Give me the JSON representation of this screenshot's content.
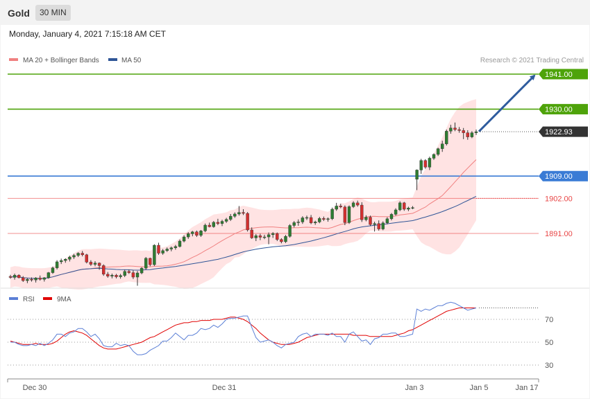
{
  "header": {
    "title": "Gold",
    "interval": "30 MIN"
  },
  "timestamp": "Monday, January 4, 2021 7:15:18 AM CET",
  "legend": {
    "ma_bollinger": {
      "label": "MA 20 + Bollinger Bands",
      "color": "#f08080"
    },
    "ma50": {
      "label": "MA 50",
      "color": "#2f5597"
    },
    "credit": "Research © 2021 Trading Central"
  },
  "levels": [
    {
      "value": 1941.0,
      "label": "1941.00",
      "color": "#4ea30a",
      "style": "line",
      "badge": "filled"
    },
    {
      "value": 1930.0,
      "label": "1930.00",
      "color": "#4ea30a",
      "style": "line",
      "badge": "filled"
    },
    {
      "value": 1922.93,
      "label": "1922.93",
      "color": "#333333",
      "style": "dotted",
      "badge": "filled"
    },
    {
      "value": 1909.0,
      "label": "1909.00",
      "color": "#3a7bd5",
      "style": "line",
      "badge": "filled"
    },
    {
      "value": 1902.0,
      "label": "1902.00",
      "color": "#e84545",
      "style": "line",
      "badge": "text"
    },
    {
      "value": 1891.0,
      "label": "1891.00",
      "color": "#e84545",
      "style": "line",
      "badge": "text"
    }
  ],
  "rsi_legend": {
    "rsi": {
      "label": "RSI",
      "color": "#5b7fd6"
    },
    "ma9": {
      "label": "9MA",
      "color": "#e00000"
    }
  },
  "rsi_levels": [
    "70",
    "50",
    "30"
  ],
  "x_labels": [
    "Dec 30",
    "Dec 31",
    "Jan 3",
    "Jan 5",
    "Jan 17"
  ],
  "chart_data": {
    "type": "candlestick",
    "y_range": [
      1873,
      1944
    ],
    "last_price": 1922.93,
    "projection": {
      "from_price": 1923.0,
      "to_price": 1941.0
    },
    "candles": [
      [
        1877.5,
        1878.0,
        1876.8,
        1877.2
      ],
      [
        1877.2,
        1878.4,
        1876.5,
        1877.9
      ],
      [
        1877.9,
        1878.2,
        1876.9,
        1877.1
      ],
      [
        1877.1,
        1877.6,
        1875.8,
        1876.2
      ],
      [
        1876.2,
        1876.9,
        1875.4,
        1876.6
      ],
      [
        1876.6,
        1877.2,
        1875.9,
        1876.4
      ],
      [
        1876.4,
        1877.3,
        1875.6,
        1877.0
      ],
      [
        1877.0,
        1877.8,
        1876.2,
        1876.6
      ],
      [
        1876.6,
        1877.3,
        1875.9,
        1877.1
      ],
      [
        1877.1,
        1878.9,
        1876.8,
        1878.7
      ],
      [
        1878.7,
        1880.6,
        1878.3,
        1880.2
      ],
      [
        1880.2,
        1882.6,
        1879.7,
        1882.1
      ],
      [
        1882.1,
        1883.1,
        1881.4,
        1882.5
      ],
      [
        1882.5,
        1883.2,
        1881.8,
        1882.9
      ],
      [
        1882.9,
        1884.0,
        1882.2,
        1883.6
      ],
      [
        1883.6,
        1884.6,
        1883.0,
        1884.1
      ],
      [
        1884.1,
        1885.1,
        1883.6,
        1884.8
      ],
      [
        1884.8,
        1885.5,
        1883.8,
        1884.3
      ],
      [
        1884.3,
        1884.6,
        1881.6,
        1882.0
      ],
      [
        1882.0,
        1882.6,
        1880.8,
        1881.3
      ],
      [
        1881.3,
        1882.3,
        1880.7,
        1881.7
      ],
      [
        1881.7,
        1881.9,
        1879.6,
        1880.9
      ],
      [
        1880.9,
        1881.3,
        1877.7,
        1878.2
      ],
      [
        1878.2,
        1878.9,
        1877.1,
        1877.6
      ],
      [
        1877.6,
        1878.4,
        1876.9,
        1877.9
      ],
      [
        1877.9,
        1878.3,
        1876.9,
        1877.4
      ],
      [
        1877.4,
        1878.3,
        1876.8,
        1877.8
      ],
      [
        1877.8,
        1879.6,
        1877.3,
        1879.1
      ],
      [
        1879.1,
        1879.7,
        1878.3,
        1878.7
      ],
      [
        1878.7,
        1879.4,
        1876.7,
        1877.3
      ],
      [
        1877.3,
        1879.2,
        1874.6,
        1878.6
      ],
      [
        1878.6,
        1880.4,
        1878.2,
        1880.1
      ],
      [
        1880.1,
        1883.6,
        1879.6,
        1883.2
      ],
      [
        1883.2,
        1883.4,
        1880.7,
        1881.2
      ],
      [
        1881.2,
        1887.6,
        1880.8,
        1887.3
      ],
      [
        1887.3,
        1888.1,
        1884.3,
        1884.8
      ],
      [
        1884.8,
        1886.1,
        1884.3,
        1885.6
      ],
      [
        1885.6,
        1886.6,
        1885.2,
        1886.1
      ],
      [
        1886.1,
        1886.9,
        1885.4,
        1886.5
      ],
      [
        1886.5,
        1887.4,
        1885.9,
        1886.9
      ],
      [
        1886.9,
        1889.1,
        1886.6,
        1888.6
      ],
      [
        1888.6,
        1890.4,
        1888.2,
        1889.9
      ],
      [
        1889.9,
        1891.4,
        1889.3,
        1890.9
      ],
      [
        1890.9,
        1891.8,
        1890.1,
        1891.5
      ],
      [
        1891.5,
        1891.9,
        1889.9,
        1890.4
      ],
      [
        1890.4,
        1892.1,
        1889.9,
        1891.8
      ],
      [
        1891.8,
        1894.1,
        1891.4,
        1893.6
      ],
      [
        1893.6,
        1894.4,
        1892.9,
        1893.1
      ],
      [
        1893.1,
        1894.9,
        1892.8,
        1894.5
      ],
      [
        1894.5,
        1895.6,
        1893.6,
        1894.1
      ],
      [
        1894.1,
        1895.3,
        1893.3,
        1894.8
      ],
      [
        1894.8,
        1895.9,
        1894.3,
        1895.4
      ],
      [
        1895.4,
        1897.1,
        1894.9,
        1896.4
      ],
      [
        1896.4,
        1897.6,
        1895.9,
        1897.1
      ],
      [
        1897.1,
        1899.6,
        1896.6,
        1897.6
      ],
      [
        1897.6,
        1898.6,
        1896.8,
        1897.3
      ],
      [
        1897.3,
        1897.7,
        1891.6,
        1892.1
      ],
      [
        1892.1,
        1892.9,
        1889.3,
        1889.6
      ],
      [
        1889.6,
        1890.8,
        1888.6,
        1890.3
      ],
      [
        1890.3,
        1890.9,
        1888.9,
        1889.8
      ],
      [
        1889.8,
        1890.6,
        1889.2,
        1889.9
      ],
      [
        1889.9,
        1891.3,
        1887.6,
        1890.6
      ],
      [
        1890.6,
        1891.4,
        1889.6,
        1891.0
      ],
      [
        1891.0,
        1891.3,
        1888.6,
        1889.1
      ],
      [
        1889.1,
        1889.5,
        1887.9,
        1888.4
      ],
      [
        1888.4,
        1890.5,
        1888.0,
        1890.1
      ],
      [
        1890.1,
        1893.9,
        1889.7,
        1893.5
      ],
      [
        1893.5,
        1894.9,
        1892.9,
        1894.4
      ],
      [
        1894.4,
        1895.4,
        1893.4,
        1894.6
      ],
      [
        1894.6,
        1896.4,
        1894.0,
        1895.9
      ],
      [
        1895.9,
        1896.6,
        1895.2,
        1896.0
      ],
      [
        1896.0,
        1896.8,
        1893.9,
        1894.3
      ],
      [
        1894.3,
        1895.0,
        1893.7,
        1894.6
      ],
      [
        1894.6,
        1896.2,
        1894.2,
        1895.7
      ],
      [
        1895.7,
        1896.3,
        1894.9,
        1895.4
      ],
      [
        1895.4,
        1896.0,
        1894.7,
        1895.6
      ],
      [
        1895.6,
        1899.1,
        1895.2,
        1898.6
      ],
      [
        1898.6,
        1900.6,
        1898.1,
        1899.6
      ],
      [
        1899.6,
        1900.3,
        1898.9,
        1899.3
      ],
      [
        1899.3,
        1899.8,
        1893.6,
        1894.4
      ],
      [
        1894.4,
        1899.8,
        1894.0,
        1899.4
      ],
      [
        1899.4,
        1901.1,
        1899.0,
        1900.6
      ],
      [
        1900.6,
        1901.3,
        1899.4,
        1899.9
      ],
      [
        1899.9,
        1900.8,
        1894.6,
        1895.3
      ],
      [
        1895.3,
        1896.7,
        1894.8,
        1896.1
      ],
      [
        1896.1,
        1896.6,
        1893.3,
        1893.8
      ],
      [
        1893.8,
        1894.7,
        1891.6,
        1894.1
      ],
      [
        1894.1,
        1895.1,
        1891.9,
        1892.4
      ],
      [
        1892.4,
        1894.8,
        1892.0,
        1894.3
      ],
      [
        1894.3,
        1896.1,
        1893.9,
        1895.6
      ],
      [
        1895.6,
        1897.4,
        1895.1,
        1897.0
      ],
      [
        1897.0,
        1898.9,
        1896.6,
        1898.4
      ],
      [
        1898.4,
        1901.1,
        1898.0,
        1900.6
      ],
      [
        1900.6,
        1900.9,
        1898.1,
        1898.6
      ],
      [
        1898.6,
        1899.4,
        1898.0,
        1899.0
      ],
      [
        1899.0,
        1899.6,
        1898.6,
        1899.1
      ],
      [
        1908.0,
        1911.1,
        1904.6,
        1910.9
      ],
      [
        1910.9,
        1914.4,
        1909.7,
        1913.9
      ],
      [
        1913.9,
        1914.3,
        1911.3,
        1911.8
      ],
      [
        1911.8,
        1915.1,
        1910.9,
        1914.6
      ],
      [
        1914.6,
        1916.1,
        1914.1,
        1915.8
      ],
      [
        1915.8,
        1917.9,
        1915.3,
        1917.6
      ],
      [
        1917.6,
        1920.1,
        1916.6,
        1919.1
      ],
      [
        1919.1,
        1923.6,
        1918.6,
        1923.1
      ],
      [
        1923.1,
        1925.1,
        1922.3,
        1924.1
      ],
      [
        1924.1,
        1925.8,
        1923.1,
        1923.6
      ],
      [
        1923.6,
        1924.4,
        1922.6,
        1923.3
      ],
      [
        1923.3,
        1924.1,
        1920.6,
        1922.6
      ],
      [
        1922.6,
        1923.4,
        1920.4,
        1921.3
      ],
      [
        1921.3,
        1923.1,
        1920.9,
        1922.6
      ],
      [
        1922.6,
        1923.6,
        1921.9,
        1922.93
      ]
    ],
    "rsi": {
      "range": [
        16,
        84
      ],
      "rsi": [
        50,
        50,
        48,
        47,
        47,
        48,
        47,
        49,
        47,
        49,
        52,
        57,
        57,
        55,
        58,
        59,
        62,
        62,
        59,
        55,
        57,
        53,
        47,
        46,
        46,
        49,
        47,
        48,
        47,
        42,
        39,
        39,
        40,
        43,
        45,
        47,
        51,
        51,
        54,
        58,
        55,
        52,
        56,
        56,
        58,
        62,
        61,
        62,
        65,
        63,
        66,
        70,
        71,
        71,
        72,
        73,
        73,
        63,
        54,
        50,
        51,
        52,
        50,
        47,
        45,
        48,
        49,
        50,
        55,
        57,
        58,
        55,
        57,
        57,
        57,
        56,
        58,
        55,
        55,
        50,
        57,
        59,
        55,
        51,
        52,
        48,
        53,
        54,
        57,
        57,
        58,
        58,
        55,
        55,
        56,
        57,
        79,
        77,
        79,
        78,
        80,
        82,
        82,
        84,
        85,
        84,
        82,
        80,
        78,
        79,
        80
      ],
      "ma": [
        51,
        50,
        49,
        48,
        48,
        48,
        49,
        48,
        48,
        48,
        49,
        51,
        54,
        57,
        59,
        60,
        59,
        58,
        56,
        53,
        50,
        47,
        45,
        44,
        44,
        44,
        45,
        46,
        47,
        48,
        49,
        50,
        52,
        54,
        55,
        57,
        59,
        61,
        63,
        65,
        66,
        67,
        67,
        68,
        68,
        69,
        69,
        69,
        70,
        70,
        70,
        71,
        72,
        72,
        71,
        70,
        68,
        65,
        62,
        58,
        55,
        52,
        50,
        49,
        48,
        48,
        48,
        49,
        50,
        52,
        54,
        55,
        56,
        57,
        57,
        57,
        57,
        57,
        57,
        57,
        57,
        56,
        56,
        56,
        56,
        55,
        55,
        55,
        55,
        55,
        55,
        56,
        57,
        58,
        60,
        61,
        63,
        65,
        67,
        69,
        71,
        73,
        75,
        77,
        78,
        79,
        80,
        80,
        80,
        80,
        80
      ]
    }
  }
}
